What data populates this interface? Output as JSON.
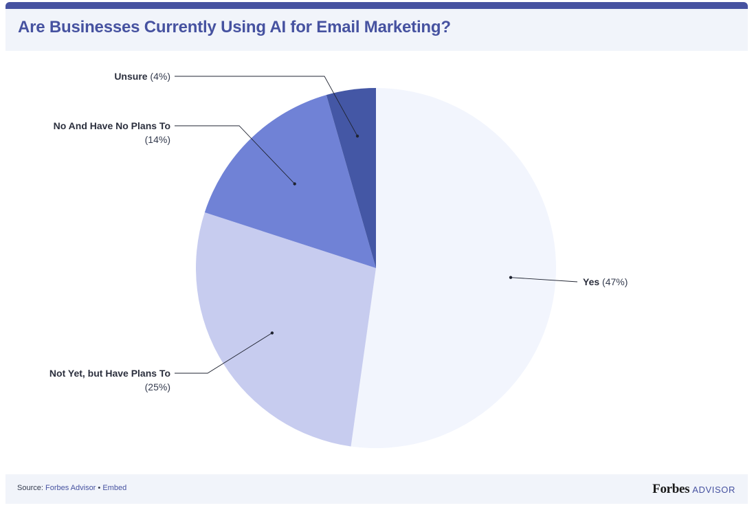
{
  "header": {
    "title": "Are Businesses Currently Using AI for Email Marketing?"
  },
  "chart_data": {
    "type": "pie",
    "title": "Are Businesses Currently Using AI for Email Marketing?",
    "start_angle_deg": 0,
    "direction": "clockwise",
    "slices": [
      {
        "label": "Yes",
        "value": 47,
        "display": "(47%)",
        "color": "#f2f5fd",
        "label_side": "right"
      },
      {
        "label": "Not Yet, but Have Plans To",
        "value": 25,
        "display": "(25%)",
        "color": "#c7ccef",
        "label_side": "left"
      },
      {
        "label": "No And Have No Plans To",
        "value": 14,
        "display": "(14%)",
        "color": "#7082d6",
        "label_side": "left"
      },
      {
        "label": "Unsure",
        "value": 4,
        "display": "(4%)",
        "color": "#4457a5",
        "label_side": "left"
      }
    ]
  },
  "footer": {
    "source_prefix": "Source:",
    "source_name": "Forbes Advisor",
    "separator": "•",
    "embed_label": "Embed",
    "logo_brand": "Forbes",
    "logo_suffix": "ADVISOR"
  }
}
